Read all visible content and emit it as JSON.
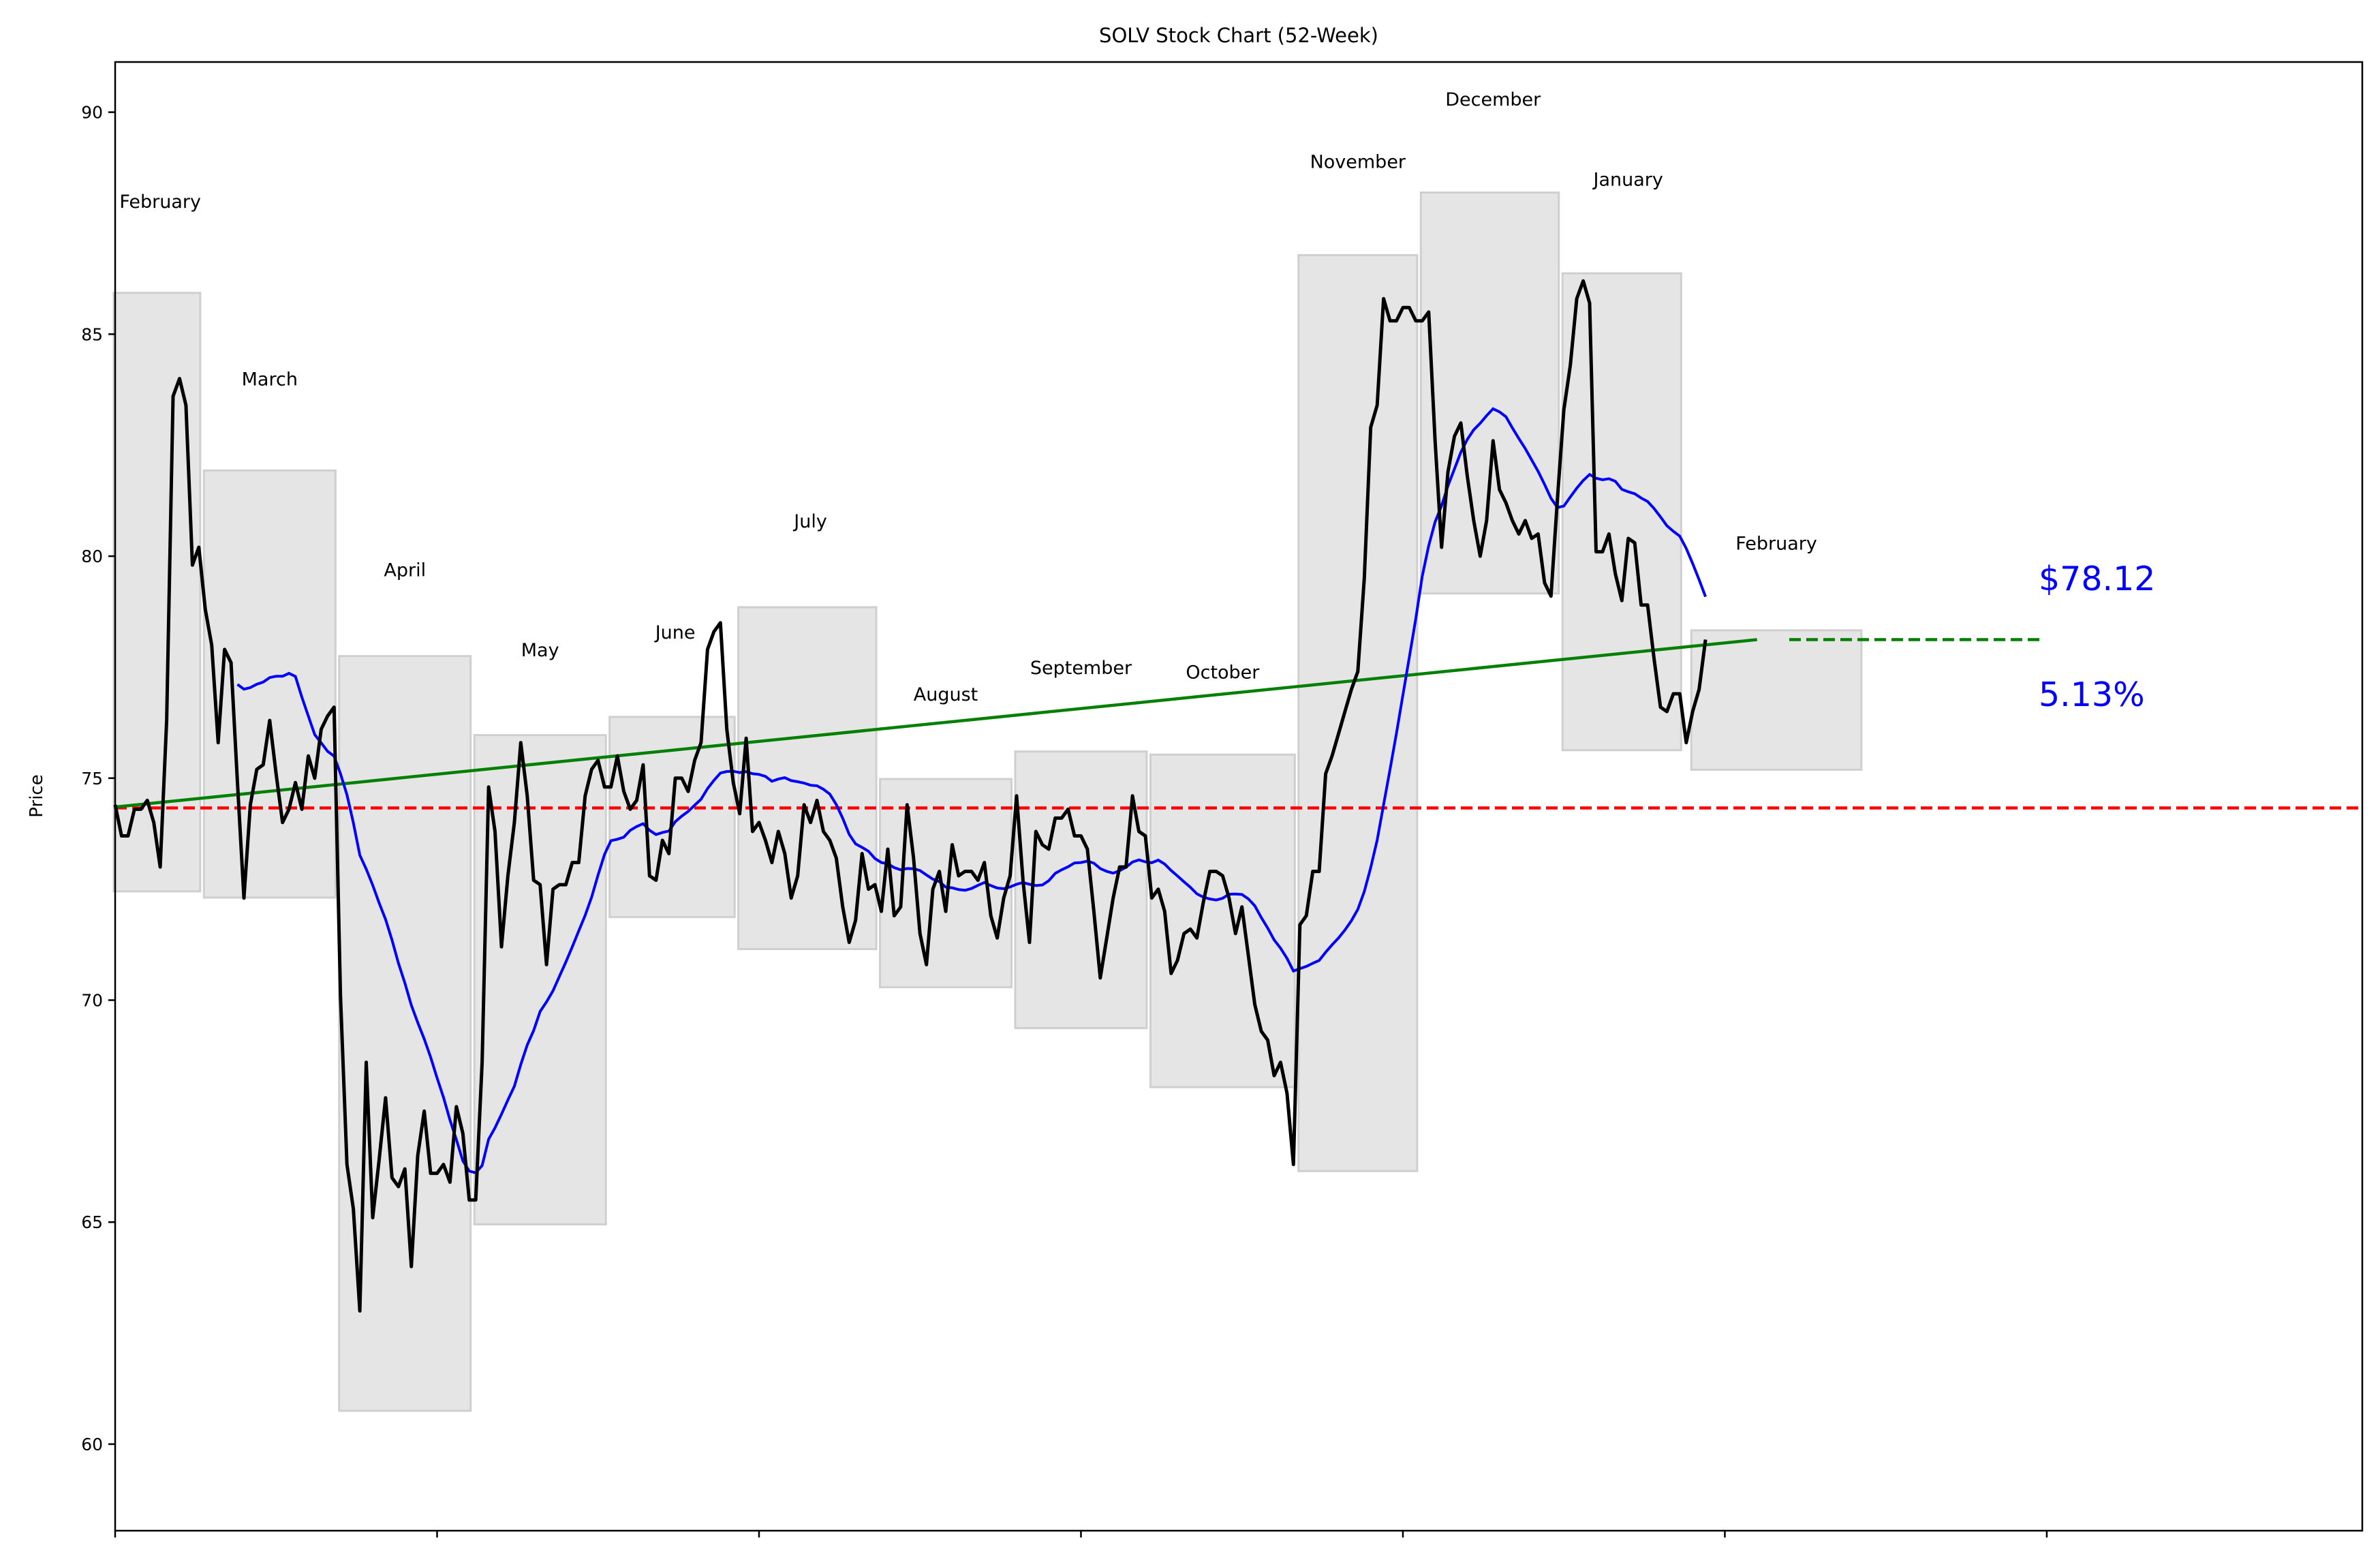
{
  "chart_data": {
    "type": "line",
    "title": "SOLV Stock Chart (52-Week)",
    "xlabel": "",
    "ylabel": "Price",
    "xlim": [
      0,
      349
    ],
    "ylim": [
      58.05,
      91.13
    ],
    "xticks": [
      0,
      50,
      100,
      150,
      200,
      250,
      300
    ],
    "yticks": [
      60,
      65,
      70,
      75,
      80,
      85,
      90
    ],
    "grid": false,
    "price": [
      74.4,
      73.7,
      73.7,
      74.3,
      74.3,
      74.5,
      74.0,
      73.0,
      76.3,
      83.6,
      84.0,
      83.4,
      79.8,
      80.2,
      78.8,
      78.0,
      75.8,
      77.9,
      77.6,
      74.9,
      72.3,
      74.4,
      75.2,
      75.3,
      76.3,
      75.1,
      74.0,
      74.3,
      74.9,
      74.3,
      75.5,
      75.0,
      76.1,
      76.4,
      76.6,
      70.1,
      66.3,
      65.3,
      63.0,
      68.6,
      65.1,
      66.4,
      67.8,
      66.0,
      65.8,
      66.2,
      64.0,
      66.5,
      67.5,
      66.1,
      66.1,
      66.3,
      65.9,
      67.6,
      67.0,
      65.5,
      65.5,
      68.6,
      74.8,
      73.8,
      71.2,
      72.8,
      74.0,
      75.8,
      74.6,
      72.7,
      72.6,
      70.8,
      72.5,
      72.6,
      72.6,
      73.1,
      73.1,
      74.6,
      75.2,
      75.4,
      74.8,
      74.8,
      75.5,
      74.7,
      74.3,
      74.5,
      75.3,
      72.8,
      72.7,
      73.6,
      73.3,
      75.0,
      75.0,
      74.7,
      75.4,
      75.8,
      77.9,
      78.3,
      78.5,
      76.1,
      74.9,
      74.2,
      75.9,
      73.8,
      74.0,
      73.6,
      73.1,
      73.8,
      73.3,
      72.3,
      72.8,
      74.4,
      74.0,
      74.5,
      73.8,
      73.6,
      73.2,
      72.1,
      71.3,
      71.8,
      73.3,
      72.5,
      72.6,
      72.0,
      73.4,
      71.9,
      72.1,
      74.4,
      73.2,
      71.5,
      70.8,
      72.5,
      72.9,
      72.0,
      73.5,
      72.8,
      72.9,
      72.9,
      72.7,
      73.1,
      71.9,
      71.4,
      72.3,
      72.8,
      74.6,
      72.7,
      71.3,
      73.8,
      73.5,
      73.4,
      74.1,
      74.1,
      74.3,
      73.7,
      73.7,
      73.4,
      72.0,
      70.5,
      71.4,
      72.3,
      73.0,
      73.0,
      74.6,
      73.8,
      73.7,
      72.3,
      72.5,
      72.0,
      70.6,
      70.9,
      71.5,
      71.6,
      71.4,
      72.2,
      72.9,
      72.9,
      72.8,
      72.3,
      71.5,
      72.1,
      71.0,
      69.9,
      69.3,
      69.1,
      68.3,
      68.6,
      67.9,
      66.3,
      71.7,
      71.9,
      72.9,
      72.9,
      75.1,
      75.5,
      76.0,
      76.5,
      77.0,
      77.4,
      79.5,
      82.9,
      83.4,
      85.8,
      85.3,
      85.3,
      85.6,
      85.6,
      85.3,
      85.3,
      85.5,
      82.6,
      80.2,
      81.9,
      82.7,
      83.0,
      81.8,
      80.8,
      80.0,
      80.8,
      82.6,
      81.5,
      81.2,
      80.8,
      80.5,
      80.8,
      80.4,
      80.5,
      79.4,
      79.1,
      81.3,
      83.3,
      84.3,
      85.8,
      86.2,
      85.7,
      80.1,
      80.1,
      80.5,
      79.6,
      79.0,
      80.4,
      80.3,
      78.9,
      78.9,
      77.7,
      76.6,
      76.5,
      76.9,
      76.9,
      75.8,
      76.5,
      77.0,
      78.12
    ],
    "moving_average_window": 20,
    "colors": {
      "price": "#000000",
      "moving_average": "#0000ff",
      "trend": "#008000",
      "reference": "#ff0000",
      "box": "#e5e5e5",
      "annotation": "#0000ff"
    },
    "reference_line": 74.33,
    "trend_line": {
      "x": [
        0,
        255
      ],
      "y": [
        74.35,
        78.12
      ]
    },
    "projection_line": {
      "x": [
        260,
        299
      ],
      "y": 78.12
    },
    "months": [
      {
        "label": "February",
        "x": [
          0,
          13
        ],
        "y": [
          72.45,
          85.93
        ],
        "label_x": 7,
        "label_y": 88.0
      },
      {
        "label": "March",
        "x": [
          14,
          34
        ],
        "y": [
          72.31,
          81.93
        ],
        "label_x": 24,
        "label_y": 84.0
      },
      {
        "label": "April",
        "x": [
          35,
          55
        ],
        "y": [
          60.75,
          77.75
        ],
        "label_x": 45,
        "label_y": 79.7
      },
      {
        "label": "May",
        "x": [
          56,
          76
        ],
        "y": [
          64.95,
          75.97
        ],
        "label_x": 66,
        "label_y": 77.9
      },
      {
        "label": "June",
        "x": [
          77,
          96
        ],
        "y": [
          71.87,
          76.38
        ],
        "label_x": 87,
        "label_y": 78.3
      },
      {
        "label": "July",
        "x": [
          97,
          118
        ],
        "y": [
          71.15,
          78.85
        ],
        "label_x": 108,
        "label_y": 80.8
      },
      {
        "label": "August",
        "x": [
          119,
          139
        ],
        "y": [
          70.29,
          74.98
        ],
        "label_x": 129,
        "label_y": 76.9
      },
      {
        "label": "September",
        "x": [
          140,
          160
        ],
        "y": [
          69.37,
          75.6
        ],
        "label_x": 150,
        "label_y": 77.5
      },
      {
        "label": "October",
        "x": [
          161,
          183
        ],
        "y": [
          68.04,
          75.53
        ],
        "label_x": 172,
        "label_y": 77.4
      },
      {
        "label": "November",
        "x": [
          184,
          202
        ],
        "y": [
          66.15,
          86.78
        ],
        "label_x": 193,
        "label_y": 88.9
      },
      {
        "label": "December",
        "x": [
          203,
          224
        ],
        "y": [
          79.16,
          88.19
        ],
        "label_x": 214,
        "label_y": 90.3
      },
      {
        "label": "January",
        "x": [
          225,
          243
        ],
        "y": [
          75.63,
          86.37
        ],
        "label_x": 235,
        "label_y": 88.5
      },
      {
        "label": "February",
        "x": [
          245,
          271
        ],
        "y": [
          75.19,
          78.33
        ],
        "label_x": 258,
        "label_y": 80.3
      }
    ],
    "annotations": {
      "price_label": "$78.12",
      "change_label": "5.13%"
    }
  }
}
